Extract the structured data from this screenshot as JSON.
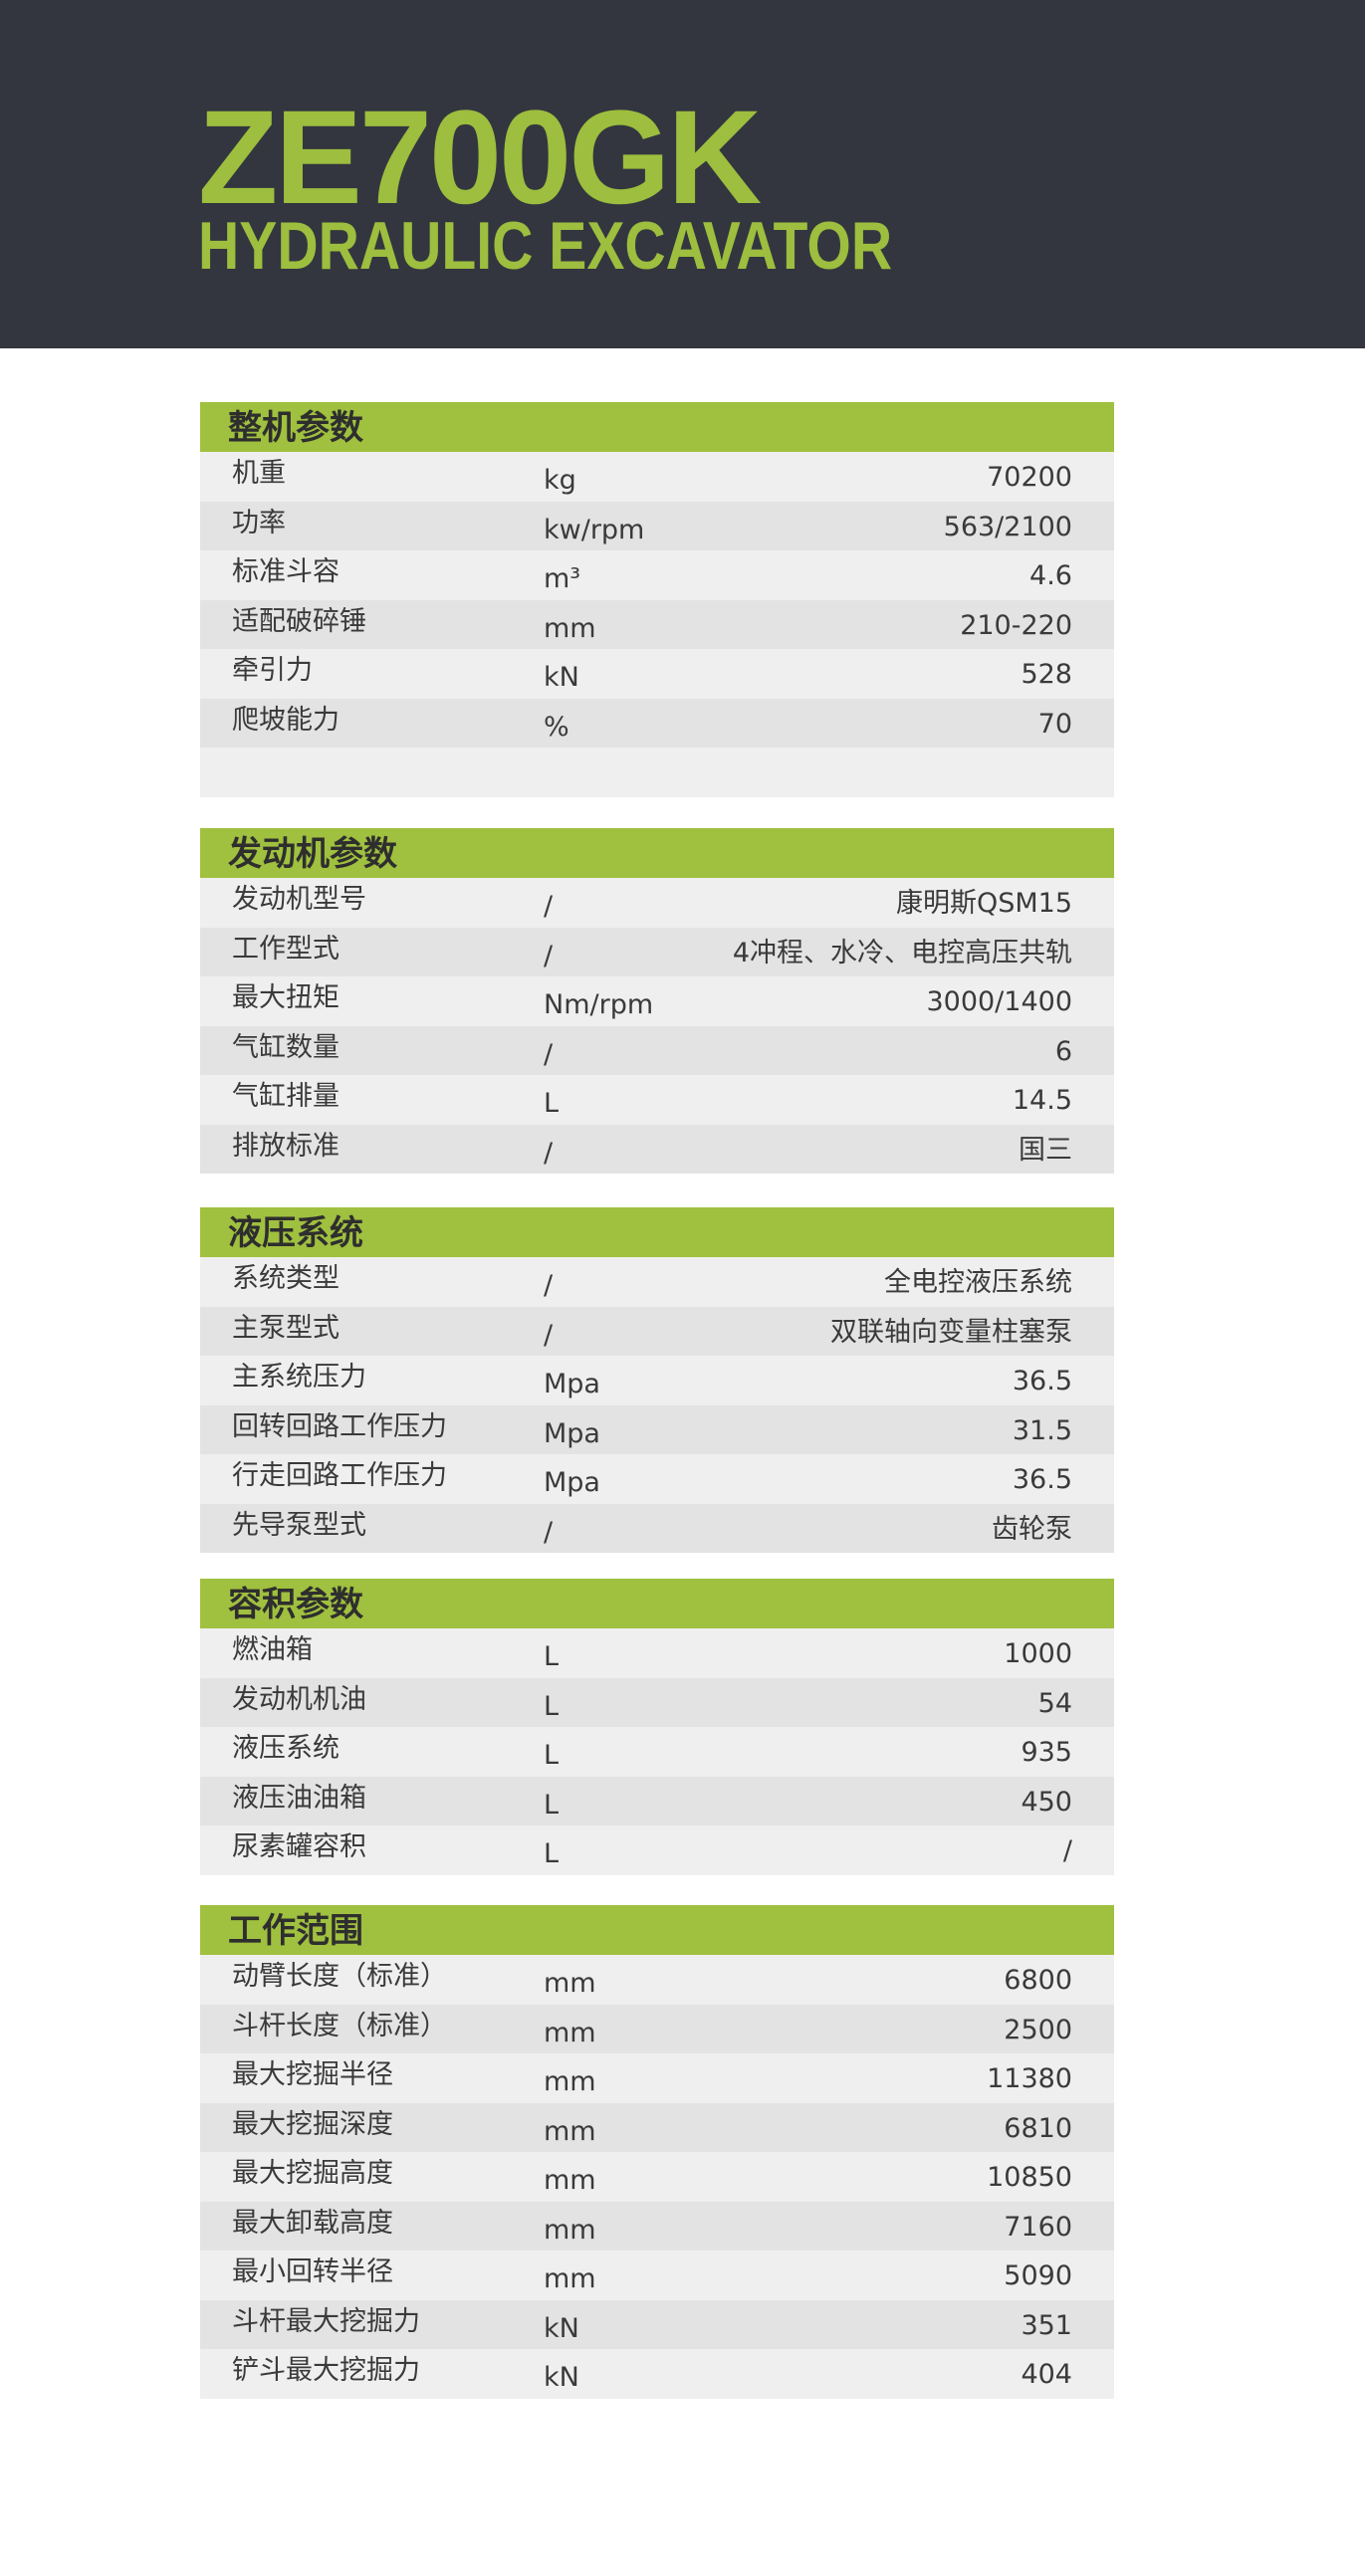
{
  "header": {
    "model": "ZE700GK",
    "subtitle": "HYDRAULIC EXCAVATOR"
  },
  "colors": {
    "accent_green": "#a0c03f",
    "header_bg": "#33363f",
    "row_light": "#f0efef",
    "row_dark": "#e3e3e3"
  },
  "sections": [
    {
      "title": "整机参数",
      "rows": [
        {
          "label": "机重",
          "unit": "kg",
          "value": "70200"
        },
        {
          "label": "功率",
          "unit": "kw/rpm",
          "value": "563/2100"
        },
        {
          "label": "标准斗容",
          "unit": "m³",
          "value": "4.6"
        },
        {
          "label": "适配破碎锤",
          "unit": "mm",
          "value": "210-220"
        },
        {
          "label": "牵引力",
          "unit": "kN",
          "value": "528"
        },
        {
          "label": "爬坡能力",
          "unit": "%",
          "value": "70"
        },
        {
          "label": "",
          "unit": "",
          "value": ""
        }
      ]
    },
    {
      "title": "发动机参数",
      "rows": [
        {
          "label": "发动机型号",
          "unit": "/",
          "value": "康明斯QSM15"
        },
        {
          "label": "工作型式",
          "unit": "/",
          "value": "4冲程、水冷、电控高压共轨"
        },
        {
          "label": "最大扭矩",
          "unit": "Nm/rpm",
          "value": "3000/1400"
        },
        {
          "label": "气缸数量",
          "unit": "/",
          "value": "6"
        },
        {
          "label": "气缸排量",
          "unit": "L",
          "value": "14.5"
        },
        {
          "label": "排放标准",
          "unit": "/",
          "value": "国三"
        }
      ]
    },
    {
      "title": "液压系统",
      "rows": [
        {
          "label": "系统类型",
          "unit": "/",
          "value": "全电控液压系统"
        },
        {
          "label": "主泵型式",
          "unit": "/",
          "value": "双联轴向变量柱塞泵"
        },
        {
          "label": "主系统压力",
          "unit": "Mpa",
          "value": "36.5"
        },
        {
          "label": "回转回路工作压力",
          "unit": "Mpa",
          "value": "31.5"
        },
        {
          "label": "行走回路工作压力",
          "unit": "Mpa",
          "value": "36.5"
        },
        {
          "label": "先导泵型式",
          "unit": "/",
          "value": "齿轮泵"
        }
      ]
    },
    {
      "title": "容积参数",
      "rows": [
        {
          "label": "燃油箱",
          "unit": "L",
          "value": "1000"
        },
        {
          "label": "发动机机油",
          "unit": "L",
          "value": "54"
        },
        {
          "label": "液压系统",
          "unit": "L",
          "value": "935"
        },
        {
          "label": "液压油油箱",
          "unit": "L",
          "value": "450"
        },
        {
          "label": "尿素罐容积",
          "unit": "L",
          "value": "/"
        }
      ]
    },
    {
      "title": "工作范围",
      "rows": [
        {
          "label": "动臂长度（标准）",
          "unit": "mm",
          "value": "6800"
        },
        {
          "label": "斗杆长度（标准）",
          "unit": "mm",
          "value": "2500"
        },
        {
          "label": "最大挖掘半径",
          "unit": "mm",
          "value": "11380"
        },
        {
          "label": "最大挖掘深度",
          "unit": "mm",
          "value": "6810"
        },
        {
          "label": "最大挖掘高度",
          "unit": "mm",
          "value": "10850"
        },
        {
          "label": "最大卸载高度",
          "unit": "mm",
          "value": "7160"
        },
        {
          "label": "最小回转半径",
          "unit": "mm",
          "value": "5090"
        },
        {
          "label": "斗杆最大挖掘力",
          "unit": "kN",
          "value": "351"
        },
        {
          "label": "铲斗最大挖掘力",
          "unit": "kN",
          "value": "404"
        }
      ]
    }
  ]
}
